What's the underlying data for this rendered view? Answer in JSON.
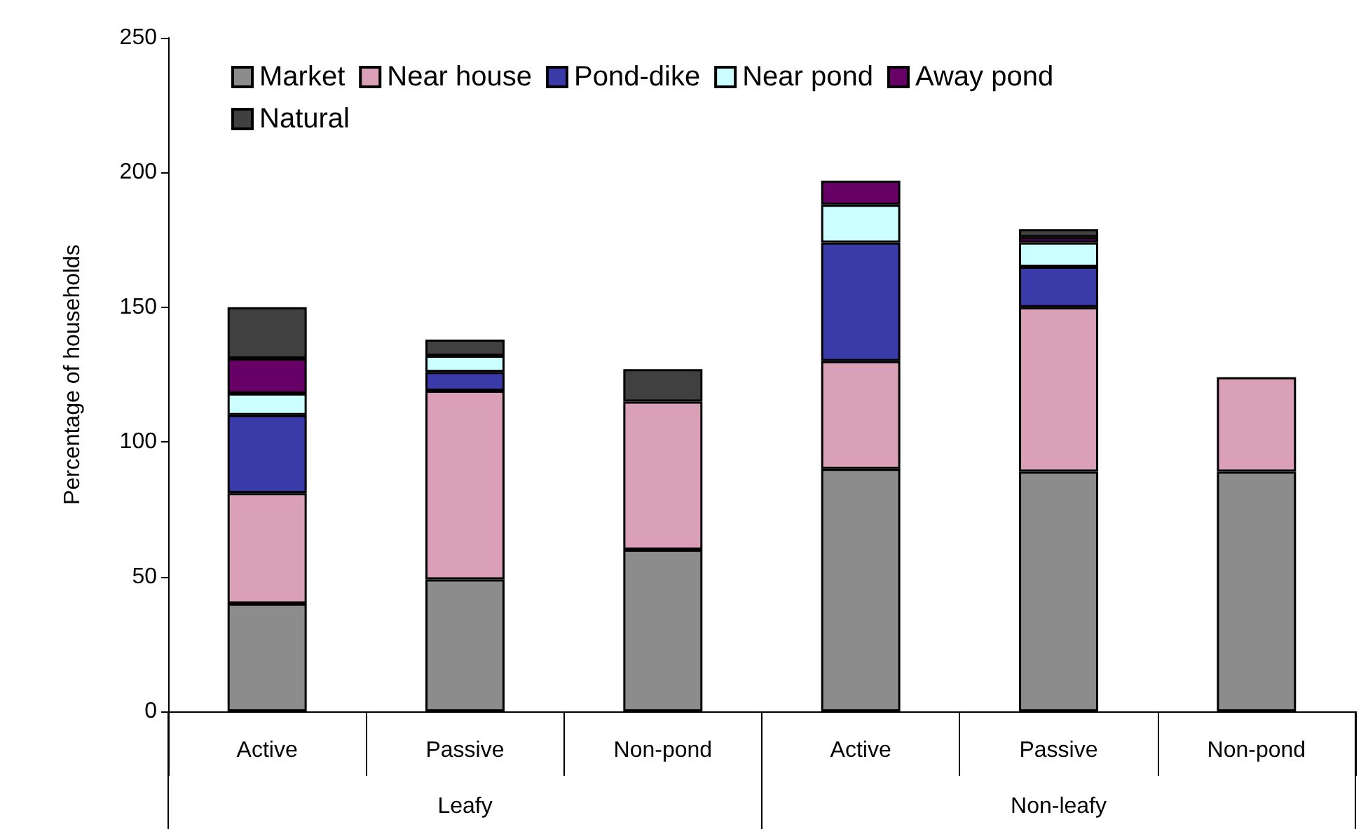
{
  "chart_data": {
    "type": "bar",
    "stacked": true,
    "ylabel": "Percentage of households",
    "categories": [
      "Active",
      "Passive",
      "Non-pond",
      "Active",
      "Passive",
      "Non-pond"
    ],
    "annotations": [
      "Leafy",
      "Non-leafy"
    ],
    "series": [
      {
        "name": "Market",
        "color": "#8c8c8c",
        "values": [
          40,
          49,
          60,
          90,
          89,
          89
        ]
      },
      {
        "name": "Near house",
        "color": "#d9a0b8",
        "values": [
          41,
          70,
          55,
          40,
          61,
          35
        ]
      },
      {
        "name": "Pond-dike",
        "color": "#3a3aa8",
        "values": [
          29,
          7,
          0,
          44,
          15,
          0
        ]
      },
      {
        "name": "Near pond",
        "color": "#ccffff",
        "values": [
          8,
          6,
          0,
          14,
          9,
          0
        ]
      },
      {
        "name": "Away pond",
        "color": "#660066",
        "values": [
          13,
          0,
          0,
          9,
          2,
          0
        ]
      },
      {
        "name": "Natural",
        "color": "#404040",
        "values": [
          19,
          6,
          12,
          0,
          3,
          0
        ]
      }
    ],
    "ylim": [
      0,
      250
    ],
    "yticks": [
      0,
      50,
      100,
      150,
      200,
      250
    ],
    "grid": false,
    "legend": "top left"
  }
}
